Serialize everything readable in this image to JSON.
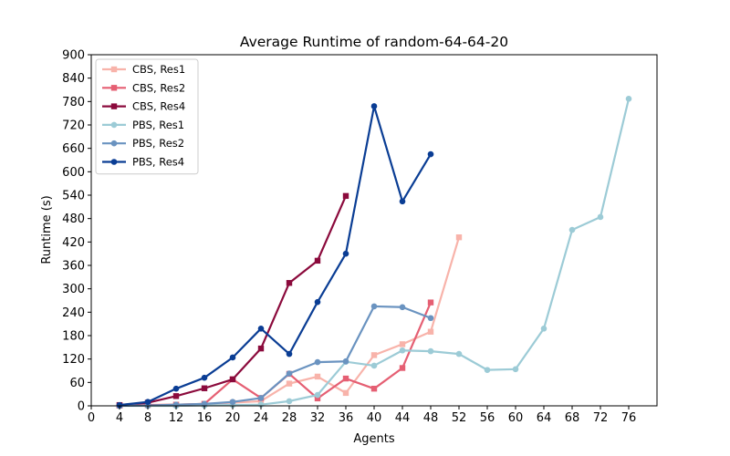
{
  "chart_data": {
    "type": "line",
    "title": "Average Runtime of random-64-64-20",
    "xlabel": "Agents",
    "ylabel": "Runtime (s)",
    "xlim": [
      0,
      80
    ],
    "ylim": [
      0,
      900
    ],
    "xticks": [
      0,
      4,
      8,
      12,
      16,
      20,
      24,
      28,
      32,
      36,
      40,
      44,
      48,
      52,
      56,
      60,
      64,
      68,
      72,
      76
    ],
    "yticks": [
      0,
      60,
      120,
      180,
      240,
      300,
      360,
      420,
      480,
      540,
      600,
      660,
      720,
      780,
      840,
      900
    ],
    "grid": false,
    "legend_position": "top-left",
    "series": [
      {
        "name": "CBS, Res1",
        "color": "#f8b3aa",
        "marker": "square",
        "x": [
          4,
          8,
          12,
          16,
          20,
          24,
          28,
          32,
          36,
          40,
          44,
          48,
          52
        ],
        "y": [
          1,
          2,
          3,
          5,
          8,
          12,
          57,
          75,
          33,
          130,
          158,
          190,
          432
        ]
      },
      {
        "name": "CBS, Res2",
        "color": "#e55f73",
        "marker": "square",
        "x": [
          4,
          8,
          12,
          16,
          20,
          24,
          28,
          32,
          36,
          40,
          44,
          48
        ],
        "y": [
          1,
          2,
          3,
          5,
          68,
          20,
          82,
          19,
          70,
          44,
          97,
          265
        ]
      },
      {
        "name": "CBS, Res4",
        "color": "#8b0a3c",
        "marker": "square",
        "x": [
          4,
          8,
          12,
          16,
          20,
          24,
          28,
          32,
          36
        ],
        "y": [
          2,
          8,
          25,
          45,
          68,
          147,
          315,
          372,
          538
        ]
      },
      {
        "name": "PBS, Res1",
        "color": "#9ccbd6",
        "marker": "circle",
        "x": [
          4,
          8,
          12,
          16,
          20,
          24,
          28,
          32,
          36,
          40,
          44,
          48,
          52,
          56,
          60,
          64,
          68,
          72,
          76
        ],
        "y": [
          0,
          0,
          0,
          1,
          2,
          3,
          12,
          28,
          113,
          103,
          142,
          140,
          133,
          92,
          94,
          198,
          451,
          484,
          787
        ]
      },
      {
        "name": "PBS, Res2",
        "color": "#6a93c0",
        "marker": "circle",
        "x": [
          4,
          8,
          12,
          16,
          20,
          24,
          28,
          32,
          36,
          40,
          44,
          48
        ],
        "y": [
          0,
          1,
          3,
          5,
          10,
          20,
          83,
          112,
          114,
          255,
          253,
          225
        ]
      },
      {
        "name": "PBS, Res4",
        "color": "#0a3d94",
        "marker": "circle",
        "x": [
          4,
          8,
          12,
          16,
          20,
          24,
          28,
          32,
          36,
          40,
          44,
          48
        ],
        "y": [
          2,
          10,
          44,
          72,
          124,
          198,
          133,
          266,
          390,
          768,
          524,
          645
        ]
      }
    ]
  }
}
